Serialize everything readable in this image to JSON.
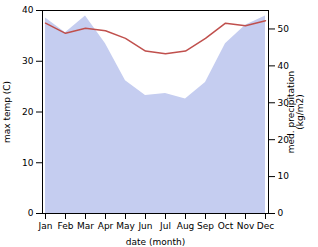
{
  "chart_data": {
    "type": "line",
    "xlabel": "date (month)",
    "ylabel": "max temp (C)",
    "y2label": "med. precipitation\n(kg/m2)",
    "categories": [
      "Jan",
      "Feb",
      "Mar",
      "Apr",
      "May",
      "Jun",
      "Jul",
      "Aug",
      "Sep",
      "Oct",
      "Nov",
      "Dec"
    ],
    "series": [
      {
        "type": "area",
        "axis": "y2",
        "color": "#c5cdf0",
        "values": [
          53.0,
          49.0,
          53.5,
          46.0,
          36.0,
          32.0,
          32.5,
          31.0,
          35.5,
          46.0,
          51.0,
          53.5
        ]
      },
      {
        "type": "line",
        "color": "#c0504d",
        "values": [
          37.5,
          35.5,
          36.5,
          36.0,
          34.5,
          32.0,
          31.5,
          32.0,
          34.5,
          37.5,
          37.0,
          38.0
        ]
      }
    ],
    "ylim": [
      0,
      40
    ],
    "yticks": [
      0,
      10,
      20,
      30,
      40
    ],
    "y2lim": [
      0,
      55
    ],
    "y2ticks": [
      0,
      10,
      20,
      30,
      40,
      50
    ],
    "grid": false
  }
}
